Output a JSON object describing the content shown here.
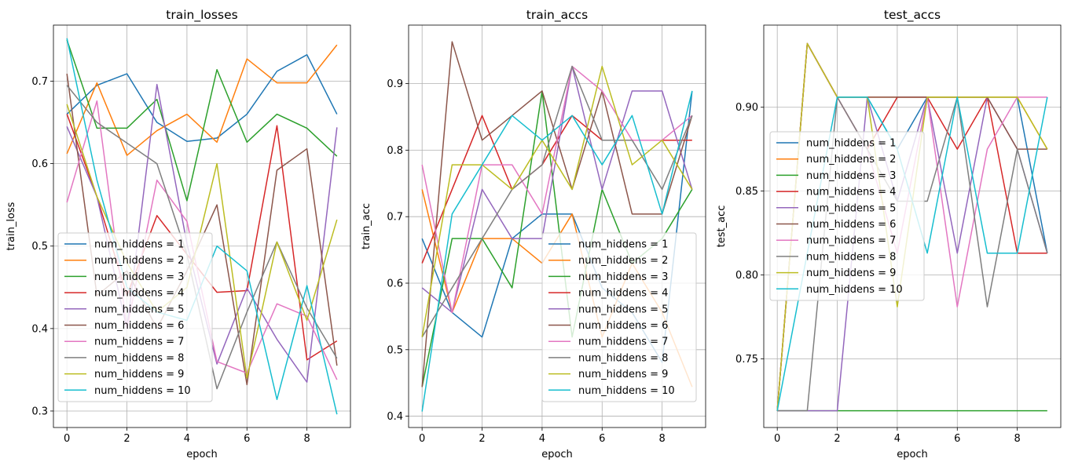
{
  "chart_data": [
    {
      "type": "line",
      "title": "train_losses",
      "xlabel": "epoch",
      "ylabel": "train_loss",
      "xlim": [
        -0.45,
        9.45
      ],
      "ylim": [
        0.28,
        0.768
      ],
      "xticks": [
        0,
        2,
        4,
        6,
        8
      ],
      "yticks": [
        0.3,
        0.4,
        0.5,
        0.6,
        0.7
      ],
      "ytick_labels": [
        "0.3",
        "0.4",
        "0.5",
        "0.6",
        "0.7"
      ],
      "grid": true,
      "legend": "lower-left",
      "x": [
        0,
        1,
        2,
        3,
        4,
        5,
        6,
        7,
        8,
        9
      ],
      "series": [
        {
          "name": "num_hiddens = 1",
          "values": [
            0.66,
            0.695,
            0.709,
            0.65,
            0.627,
            0.631,
            0.66,
            0.712,
            0.732,
            0.66
          ]
        },
        {
          "name": "num_hiddens = 2",
          "values": [
            0.612,
            0.698,
            0.61,
            0.64,
            0.66,
            0.626,
            0.727,
            0.698,
            0.698,
            0.744
          ]
        },
        {
          "name": "num_hiddens = 3",
          "values": [
            0.75,
            0.643,
            0.643,
            0.678,
            0.555,
            0.714,
            0.626,
            0.66,
            0.643,
            0.609
          ]
        },
        {
          "name": "num_hiddens = 4",
          "values": [
            0.66,
            0.56,
            0.44,
            0.537,
            0.49,
            0.444,
            0.446,
            0.646,
            0.362,
            0.385
          ]
        },
        {
          "name": "num_hiddens = 5",
          "values": [
            0.645,
            0.56,
            0.4,
            0.696,
            0.503,
            0.357,
            0.449,
            0.387,
            0.335,
            0.644
          ]
        },
        {
          "name": "num_hiddens = 6",
          "values": [
            0.709,
            0.44,
            0.47,
            0.4,
            0.47,
            0.55,
            0.332,
            0.592,
            0.618,
            0.355
          ]
        },
        {
          "name": "num_hiddens = 7",
          "values": [
            0.553,
            0.676,
            0.4,
            0.58,
            0.53,
            0.36,
            0.346,
            0.43,
            0.415,
            0.338
          ]
        },
        {
          "name": "num_hiddens = 8",
          "values": [
            0.695,
            0.65,
            0.625,
            0.6,
            0.49,
            0.327,
            0.42,
            0.505,
            0.425,
            0.364
          ]
        },
        {
          "name": "num_hiddens = 9",
          "values": [
            0.672,
            0.56,
            0.48,
            0.42,
            0.45,
            0.6,
            0.34,
            0.505,
            0.41,
            0.532
          ]
        },
        {
          "name": "num_hiddens = 10",
          "values": [
            0.752,
            0.58,
            0.45,
            0.42,
            0.41,
            0.5,
            0.47,
            0.314,
            0.452,
            0.296
          ]
        }
      ]
    },
    {
      "type": "line",
      "title": "train_accs",
      "xlabel": "epoch",
      "ylabel": "train_acc",
      "xlim": [
        -0.45,
        9.45
      ],
      "ylim": [
        0.383,
        0.988
      ],
      "xticks": [
        0,
        2,
        4,
        6,
        8
      ],
      "yticks": [
        0.4,
        0.5,
        0.6,
        0.7,
        0.8,
        0.9
      ],
      "ytick_labels": [
        "0.4",
        "0.5",
        "0.6",
        "0.7",
        "0.8",
        "0.9"
      ],
      "grid": true,
      "legend": "lower-right",
      "x": [
        0,
        1,
        2,
        3,
        4,
        5,
        6,
        7,
        8,
        9
      ],
      "series": [
        {
          "name": "num_hiddens = 1",
          "values": [
            0.667,
            0.556,
            0.519,
            0.667,
            0.704,
            0.704,
            0.593,
            0.556,
            0.481,
            0.889
          ]
        },
        {
          "name": "num_hiddens = 2",
          "values": [
            0.741,
            0.556,
            0.667,
            0.667,
            0.63,
            0.704,
            0.519,
            0.63,
            0.556,
            0.444
          ]
        },
        {
          "name": "num_hiddens = 3",
          "values": [
            0.444,
            0.667,
            0.667,
            0.593,
            0.889,
            0.519,
            0.741,
            0.63,
            0.667,
            0.741
          ]
        },
        {
          "name": "num_hiddens = 4",
          "values": [
            0.63,
            0.741,
            0.852,
            0.741,
            0.778,
            0.852,
            0.815,
            0.815,
            0.815,
            0.815
          ]
        },
        {
          "name": "num_hiddens = 5",
          "values": [
            0.593,
            0.556,
            0.741,
            0.667,
            0.667,
            0.926,
            0.741,
            0.889,
            0.889,
            0.741
          ]
        },
        {
          "name": "num_hiddens = 6",
          "values": [
            0.444,
            0.963,
            0.815,
            0.852,
            0.889,
            0.741,
            0.889,
            0.704,
            0.704,
            0.852
          ]
        },
        {
          "name": "num_hiddens = 7",
          "values": [
            0.778,
            0.556,
            0.778,
            0.778,
            0.704,
            0.926,
            0.889,
            0.815,
            0.815,
            0.852
          ]
        },
        {
          "name": "num_hiddens = 8",
          "values": [
            0.519,
            0.593,
            0.667,
            0.741,
            0.778,
            0.926,
            0.815,
            0.815,
            0.741,
            0.852
          ]
        },
        {
          "name": "num_hiddens = 9",
          "values": [
            0.519,
            0.778,
            0.778,
            0.741,
            0.815,
            0.741,
            0.926,
            0.778,
            0.815,
            0.741
          ]
        },
        {
          "name": "num_hiddens = 10",
          "values": [
            0.407,
            0.704,
            0.778,
            0.852,
            0.815,
            0.852,
            0.778,
            0.852,
            0.704,
            0.889
          ]
        }
      ]
    },
    {
      "type": "line",
      "title": "test_accs",
      "xlabel": "epoch",
      "ylabel": "test_acc",
      "xlim": [
        -0.45,
        9.45
      ],
      "ylim": [
        0.709,
        0.949
      ],
      "xticks": [
        0,
        2,
        4,
        6,
        8
      ],
      "yticks": [
        0.75,
        0.8,
        0.85,
        0.9
      ],
      "ytick_labels": [
        "0.75",
        "0.80",
        "0.85",
        "0.90"
      ],
      "grid": true,
      "legend": "center-left",
      "x": [
        0,
        1,
        2,
        3,
        4,
        5,
        6,
        7,
        8,
        9
      ],
      "series": [
        {
          "name": "num_hiddens = 1",
          "values": [
            0.719,
            0.938,
            0.906,
            0.906,
            0.875,
            0.906,
            0.906,
            0.906,
            0.906,
            0.813
          ]
        },
        {
          "name": "num_hiddens = 2",
          "values": [
            0.719,
            0.938,
            0.906,
            0.906,
            0.906,
            0.906,
            0.906,
            0.906,
            0.906,
            0.875
          ]
        },
        {
          "name": "num_hiddens = 3",
          "values": [
            0.719,
            0.719,
            0.719,
            0.719,
            0.719,
            0.719,
            0.719,
            0.719,
            0.719,
            0.719
          ]
        },
        {
          "name": "num_hiddens = 4",
          "values": [
            0.719,
            0.938,
            0.906,
            0.875,
            0.906,
            0.906,
            0.875,
            0.906,
            0.813,
            0.813
          ]
        },
        {
          "name": "num_hiddens = 5",
          "values": [
            0.719,
            0.719,
            0.719,
            0.906,
            0.844,
            0.906,
            0.813,
            0.906,
            0.875,
            0.813
          ]
        },
        {
          "name": "num_hiddens = 6",
          "values": [
            0.719,
            0.938,
            0.906,
            0.906,
            0.906,
            0.906,
            0.906,
            0.906,
            0.875,
            0.875
          ]
        },
        {
          "name": "num_hiddens = 7",
          "values": [
            0.719,
            0.938,
            0.906,
            0.875,
            0.813,
            0.906,
            0.781,
            0.875,
            0.906,
            0.906
          ]
        },
        {
          "name": "num_hiddens = 8",
          "values": [
            0.719,
            0.719,
            0.906,
            0.875,
            0.844,
            0.844,
            0.906,
            0.781,
            0.875,
            0.813
          ]
        },
        {
          "name": "num_hiddens = 9",
          "values": [
            0.719,
            0.938,
            0.906,
            0.906,
            0.781,
            0.906,
            0.906,
            0.906,
            0.906,
            0.875
          ]
        },
        {
          "name": "num_hiddens = 10",
          "values": [
            0.719,
            0.813,
            0.906,
            0.906,
            0.875,
            0.813,
            0.906,
            0.813,
            0.813,
            0.906
          ]
        }
      ]
    }
  ],
  "colors": [
    "#1f77b4",
    "#ff7f0e",
    "#2ca02c",
    "#d62728",
    "#9467bd",
    "#8c564b",
    "#e377c2",
    "#7f7f7f",
    "#bcbd22",
    "#17becf"
  ]
}
